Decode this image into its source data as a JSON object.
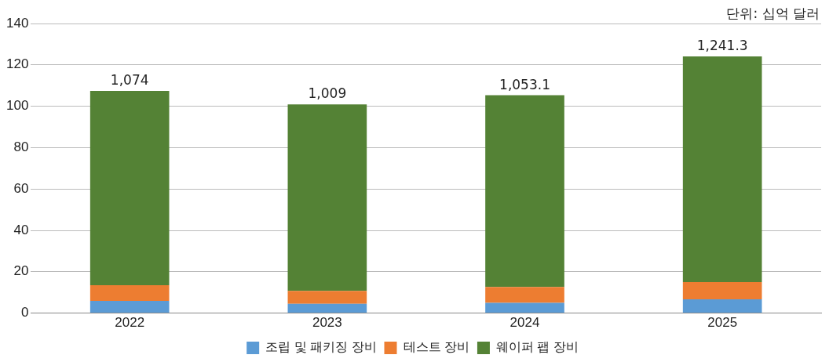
{
  "chart_data": {
    "type": "bar",
    "stacked": true,
    "categories": [
      "2022",
      "2023",
      "2024",
      "2025"
    ],
    "series": [
      {
        "name": "조립 및 패키징 장비",
        "color": "#5b9bd5",
        "values": [
          5.9,
          4.5,
          5.0,
          6.7
        ]
      },
      {
        "name": "테스트 장비",
        "color": "#ed7d31",
        "values": [
          7.6,
          6.2,
          7.6,
          8.3
        ]
      },
      {
        "name": "웨이퍼 팹 장비",
        "color": "#548235",
        "values": [
          93.9,
          90.2,
          92.7,
          109.1
        ]
      }
    ],
    "ylim": [
      0,
      140
    ],
    "yticks": [
      0,
      20,
      40,
      60,
      80,
      100,
      120,
      140
    ],
    "grid": "y",
    "legend": "bottom",
    "annotations": [
      "단위: 십억 달러",
      {
        "text": "1,074",
        "x": "2022",
        "y": 107.4
      },
      {
        "text": "1,009",
        "x": "2023",
        "y": 100.9
      },
      {
        "text": "1,053.1",
        "x": "2024",
        "y": 105.3
      },
      {
        "text": "1,241.3",
        "x": "2025",
        "y": 124.1
      }
    ]
  }
}
